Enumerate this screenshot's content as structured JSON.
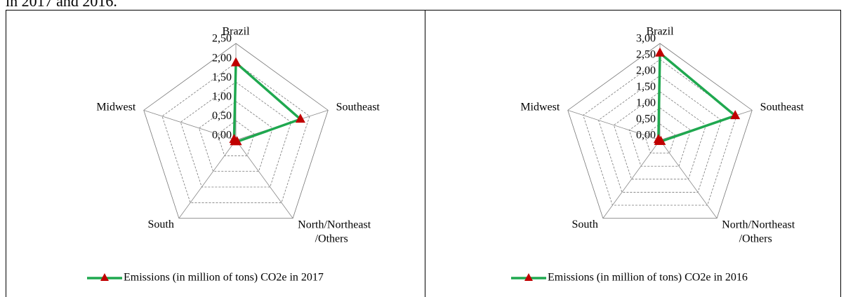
{
  "caption": "in 2017 and 2016.",
  "chart_data": [
    {
      "type": "radar",
      "categories": [
        "Brazil",
        "Southeast",
        "North/Northeast /Others",
        "South",
        "Midwest"
      ],
      "series": [
        {
          "name": "Emissions (in million of tons) CO2e in 2017",
          "color": "#1fa84f",
          "marker_color": "#c00000",
          "values": [
            2.0,
            1.75,
            0.05,
            0.05,
            0.05
          ]
        }
      ],
      "ylim": [
        0,
        2.5
      ],
      "yticks": [
        {
          "value": 0,
          "label": "0,00"
        },
        {
          "value": 0.5,
          "label": "0,50"
        },
        {
          "value": 1,
          "label": "1,00"
        },
        {
          "value": 1.5,
          "label": "1,50"
        },
        {
          "value": 2,
          "label": "2,00"
        },
        {
          "value": 2.5,
          "label": "2,50"
        }
      ],
      "grid": true,
      "legend": "bottom"
    },
    {
      "type": "radar",
      "categories": [
        "Brazil",
        "Southeast",
        "North/Northeast /Others",
        "South",
        "Midwest"
      ],
      "series": [
        {
          "name": "Emissions (in million of tons) CO2e in 2016",
          "color": "#1fa84f",
          "marker_color": "#c00000",
          "values": [
            2.7,
            2.45,
            0.05,
            0.05,
            0.05
          ]
        }
      ],
      "ylim": [
        0,
        3
      ],
      "yticks": [
        {
          "value": 0,
          "label": "0,00"
        },
        {
          "value": 0.5,
          "label": "0,50"
        },
        {
          "value": 1,
          "label": "1,00"
        },
        {
          "value": 1.5,
          "label": "1,50"
        },
        {
          "value": 2,
          "label": "2,00"
        },
        {
          "value": 2.5,
          "label": "2,50"
        },
        {
          "value": 3,
          "label": "3,00"
        }
      ],
      "grid": true,
      "legend": "bottom"
    }
  ]
}
